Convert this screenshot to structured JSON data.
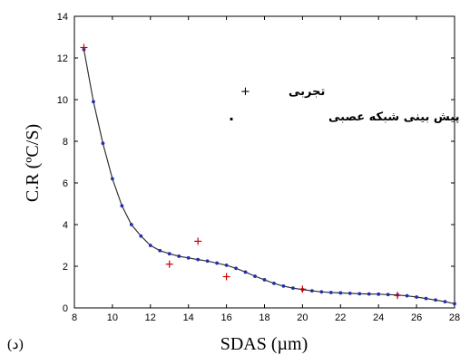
{
  "chart_data": {
    "type": "line",
    "xlabel": "SDAS (µm)",
    "ylabel": "C.R (ºC/S)",
    "xlim": [
      8,
      28
    ],
    "ylim": [
      0,
      14
    ],
    "x_ticks": [
      8,
      10,
      12,
      14,
      16,
      18,
      20,
      22,
      24,
      26,
      28
    ],
    "y_ticks": [
      0,
      2,
      4,
      6,
      8,
      10,
      12,
      14
    ],
    "x_tick_labels": [
      "8",
      "10",
      "12",
      "14",
      "16",
      "18",
      "20",
      "22",
      "24",
      "26",
      "28"
    ],
    "y_tick_labels": [
      "0",
      "2",
      "4",
      "6",
      "8",
      "10",
      "12",
      "14"
    ],
    "legend_position": "top-right",
    "panel_label": "(د)",
    "grid": false,
    "series": [
      {
        "name": "تجربی",
        "marker": "+",
        "color": "#cc0000",
        "points": [
          [
            8.5,
            12.5
          ],
          [
            13,
            2.1
          ],
          [
            14.5,
            3.2
          ],
          [
            16,
            1.5
          ],
          [
            20,
            0.9
          ],
          [
            25,
            0.6
          ]
        ]
      },
      {
        "name": "پیش بینی شبکه عصبی",
        "marker": "dot",
        "color": "#1f2fb0",
        "points": [
          [
            8.5,
            12.4
          ],
          [
            9.0,
            9.9
          ],
          [
            9.5,
            7.9
          ],
          [
            10.0,
            6.2
          ],
          [
            10.5,
            4.9
          ],
          [
            11.0,
            4.0
          ],
          [
            11.5,
            3.45
          ],
          [
            12.0,
            3.0
          ],
          [
            12.5,
            2.75
          ],
          [
            13.0,
            2.6
          ],
          [
            13.5,
            2.48
          ],
          [
            14.0,
            2.4
          ],
          [
            14.5,
            2.32
          ],
          [
            15.0,
            2.25
          ],
          [
            15.5,
            2.15
          ],
          [
            16.0,
            2.05
          ],
          [
            16.5,
            1.9
          ],
          [
            17.0,
            1.72
          ],
          [
            17.5,
            1.52
          ],
          [
            18.0,
            1.35
          ],
          [
            18.5,
            1.18
          ],
          [
            19.0,
            1.05
          ],
          [
            19.5,
            0.95
          ],
          [
            20.0,
            0.88
          ],
          [
            20.5,
            0.82
          ],
          [
            21.0,
            0.77
          ],
          [
            21.5,
            0.74
          ],
          [
            22.0,
            0.72
          ],
          [
            22.5,
            0.7
          ],
          [
            23.0,
            0.68
          ],
          [
            23.5,
            0.67
          ],
          [
            24.0,
            0.66
          ],
          [
            24.5,
            0.64
          ],
          [
            25.0,
            0.62
          ],
          [
            25.5,
            0.58
          ],
          [
            26.0,
            0.52
          ],
          [
            26.5,
            0.45
          ],
          [
            27.0,
            0.38
          ],
          [
            27.5,
            0.3
          ],
          [
            28.0,
            0.2
          ]
        ]
      }
    ]
  }
}
